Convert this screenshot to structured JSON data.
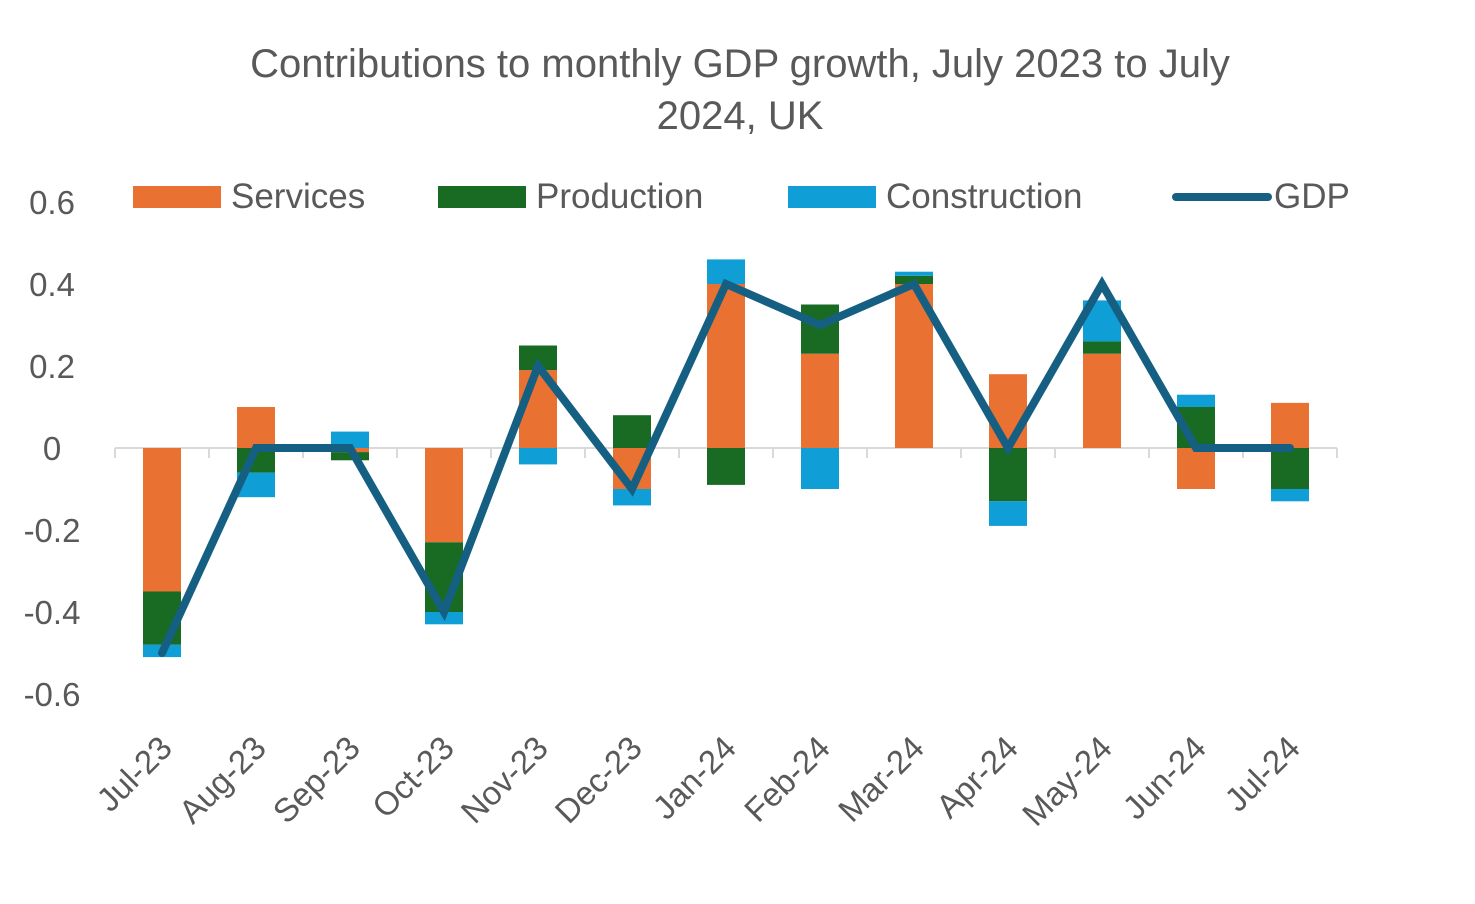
{
  "chart_data": {
    "type": "bar",
    "stacked": true,
    "title_lines": [
      "Contributions to monthly GDP growth, July 2023 to July",
      "2024, UK"
    ],
    "categories": [
      "Jul-23",
      "Aug-23",
      "Sep-23",
      "Oct-23",
      "Nov-23",
      "Dec-23",
      "Jan-24",
      "Feb-24",
      "Mar-24",
      "Apr-24",
      "May-24",
      "Jun-24",
      "Jul-24"
    ],
    "ylim": [
      -0.6,
      0.6
    ],
    "yticks": [
      0.6,
      0.4,
      0.2,
      0,
      -0.2,
      -0.4,
      -0.6
    ],
    "ytick_labels": [
      "0.6",
      "0.4",
      "0.2",
      "0",
      "-0.2",
      "-0.4",
      "-0.6"
    ],
    "series": [
      {
        "name": "Services",
        "type": "bar",
        "color": "#E97132",
        "values": [
          -0.35,
          0.1,
          -0.01,
          -0.23,
          0.19,
          -0.1,
          0.4,
          0.23,
          0.4,
          0.18,
          0.23,
          -0.1,
          0.11
        ]
      },
      {
        "name": "Production",
        "type": "bar",
        "color": "#196B24",
        "values": [
          -0.13,
          -0.06,
          -0.02,
          -0.17,
          0.06,
          0.08,
          -0.09,
          0.12,
          0.02,
          -0.13,
          0.03,
          0.1,
          -0.1
        ]
      },
      {
        "name": "Construction",
        "type": "bar",
        "color": "#0F9ED5",
        "values": [
          -0.03,
          -0.06,
          0.04,
          -0.03,
          -0.04,
          -0.04,
          0.06,
          -0.1,
          0.01,
          -0.06,
          0.1,
          0.03,
          -0.03
        ]
      },
      {
        "name": "GDP",
        "type": "line",
        "color": "#156082",
        "values": [
          -0.5,
          0.0,
          0.0,
          -0.4,
          0.2,
          -0.1,
          0.4,
          0.3,
          0.4,
          0.0,
          0.4,
          0.0,
          0.0
        ]
      }
    ],
    "legend_position": "top",
    "grid": false
  }
}
